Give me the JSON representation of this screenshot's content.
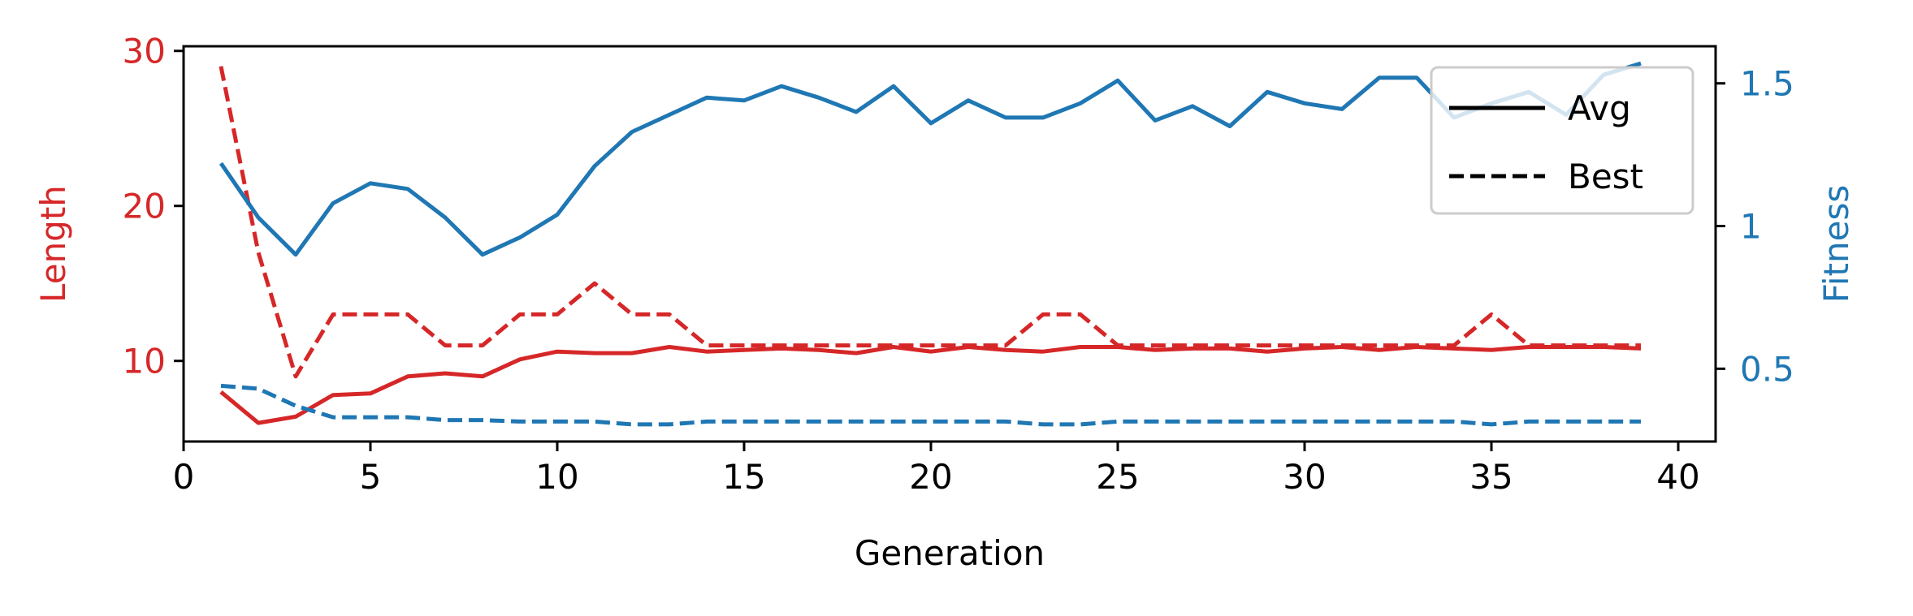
{
  "chart_data": {
    "type": "line",
    "title": "",
    "xlabel": "Generation",
    "ylabel_left": "Length",
    "ylabel_right": "Fitness",
    "xlim": [
      0,
      41
    ],
    "ylim_left": [
      4.8,
      30.3
    ],
    "ylim_right": [
      0.245,
      1.63
    ],
    "x_ticks": [
      0,
      5,
      10,
      15,
      20,
      25,
      30,
      35,
      40
    ],
    "y_left_ticks": [
      10,
      20,
      30
    ],
    "y_right_ticks": [
      0.5,
      1.0,
      1.5
    ],
    "grid": false,
    "legend_position": "top-right",
    "legend": [
      {
        "label": "Avg",
        "style": "solid"
      },
      {
        "label": "Best",
        "style": "dashed"
      }
    ],
    "colors": {
      "length": "#d62728",
      "fitness": "#1f77b4",
      "axis": "#000000",
      "legend_line": "#000000"
    },
    "x": [
      1,
      2,
      3,
      4,
      5,
      6,
      7,
      8,
      9,
      10,
      11,
      12,
      13,
      14,
      15,
      16,
      17,
      18,
      19,
      20,
      21,
      22,
      23,
      24,
      25,
      26,
      27,
      28,
      29,
      30,
      31,
      32,
      33,
      34,
      35,
      36,
      37,
      38,
      39
    ],
    "series": [
      {
        "key": "length_avg",
        "axis": "left",
        "color": "#d62728",
        "style": "solid",
        "values": [
          8.0,
          6.0,
          6.4,
          7.8,
          7.9,
          9.0,
          9.2,
          9.0,
          10.1,
          10.6,
          10.5,
          10.5,
          10.9,
          10.6,
          10.7,
          10.8,
          10.7,
          10.5,
          10.9,
          10.6,
          10.9,
          10.7,
          10.6,
          10.9,
          10.9,
          10.7,
          10.8,
          10.8,
          10.6,
          10.8,
          10.9,
          10.7,
          10.9,
          10.8,
          10.7,
          10.9,
          10.9,
          10.9,
          10.8
        ]
      },
      {
        "key": "length_best",
        "axis": "left",
        "color": "#d62728",
        "style": "dashed",
        "values": [
          29.0,
          17.0,
          9.0,
          13.0,
          13.0,
          13.0,
          11.0,
          11.0,
          13.0,
          13.0,
          15.0,
          13.0,
          13.0,
          11.0,
          11.0,
          11.0,
          11.0,
          11.0,
          11.0,
          11.0,
          11.0,
          11.0,
          13.0,
          13.0,
          11.0,
          11.0,
          11.0,
          11.0,
          11.0,
          11.0,
          11.0,
          11.0,
          11.0,
          11.0,
          13.0,
          11.0,
          11.0,
          11.0,
          11.0
        ]
      },
      {
        "key": "fitness_avg",
        "axis": "right",
        "color": "#1f77b4",
        "style": "solid",
        "values": [
          1.22,
          1.03,
          0.9,
          1.08,
          1.15,
          1.13,
          1.03,
          0.9,
          0.96,
          1.04,
          1.21,
          1.33,
          1.39,
          1.45,
          1.44,
          1.49,
          1.45,
          1.4,
          1.49,
          1.36,
          1.44,
          1.38,
          1.38,
          1.43,
          1.51,
          1.37,
          1.42,
          1.35,
          1.47,
          1.43,
          1.41,
          1.52,
          1.52,
          1.38,
          1.43,
          1.47,
          1.39,
          1.53,
          1.57
        ]
      },
      {
        "key": "fitness_best",
        "axis": "right",
        "color": "#1f77b4",
        "style": "dashed",
        "values": [
          0.44,
          0.43,
          0.37,
          0.33,
          0.33,
          0.33,
          0.32,
          0.32,
          0.315,
          0.315,
          0.315,
          0.305,
          0.305,
          0.315,
          0.315,
          0.315,
          0.315,
          0.315,
          0.315,
          0.315,
          0.315,
          0.315,
          0.305,
          0.305,
          0.315,
          0.315,
          0.315,
          0.315,
          0.315,
          0.315,
          0.315,
          0.315,
          0.315,
          0.315,
          0.305,
          0.315,
          0.315,
          0.315,
          0.315
        ]
      }
    ]
  }
}
